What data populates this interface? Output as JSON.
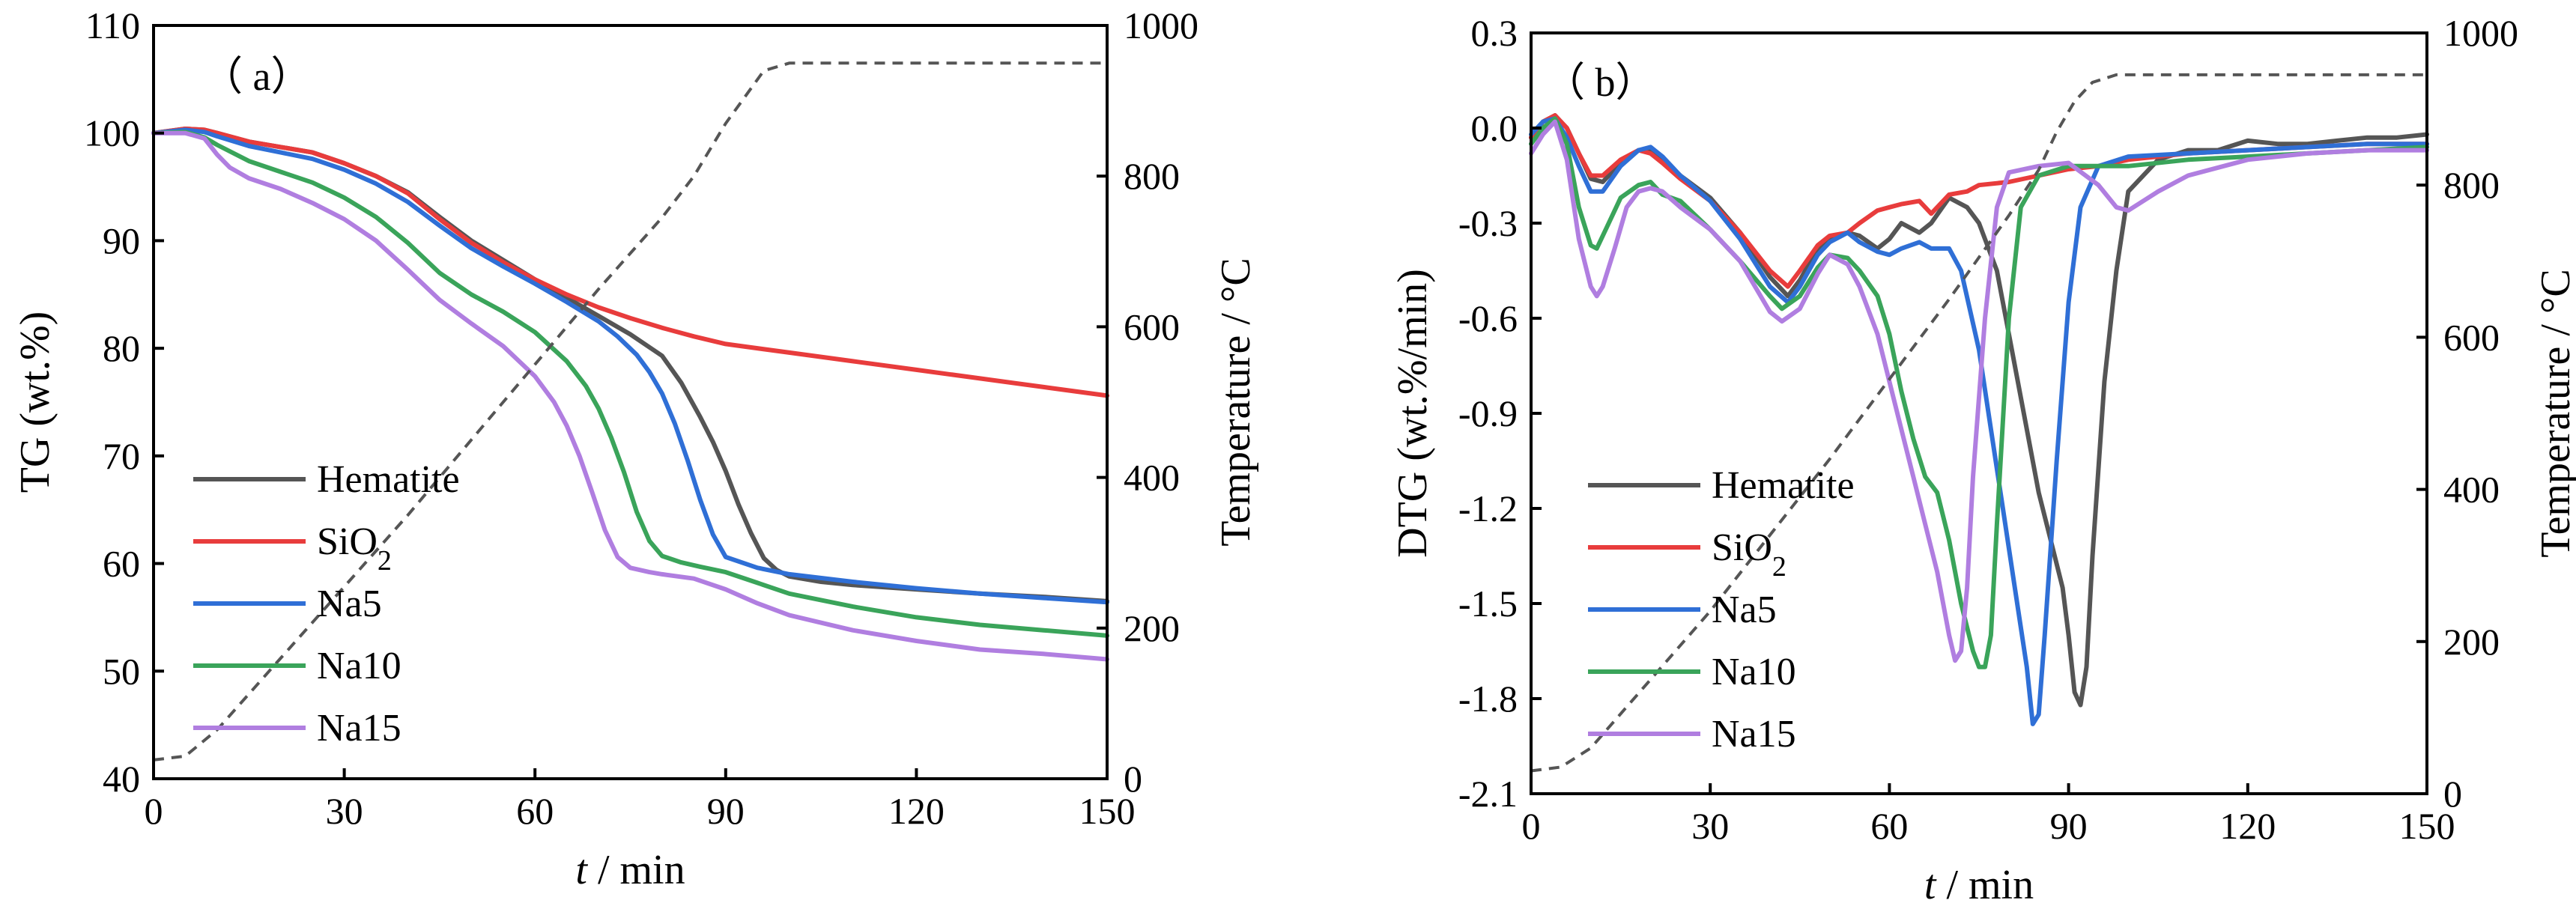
{
  "chart_data": [
    {
      "id": "a",
      "type": "line",
      "panel_label": "（ a）",
      "xlabel": {
        "var": "t",
        "unit": " / min"
      },
      "ylabel": "TG (wt.%)",
      "y2label": "Temperature / °C",
      "xlim": [
        0,
        150
      ],
      "ylim": [
        40,
        110
      ],
      "y2lim": [
        0,
        1000
      ],
      "xticks": [
        0,
        30,
        60,
        90,
        120,
        150
      ],
      "yticks": [
        40,
        50,
        60,
        70,
        80,
        90,
        100,
        110
      ],
      "y2ticks": [
        0,
        200,
        400,
        600,
        800,
        1000
      ],
      "grid": false,
      "legend_position": "bottom-left",
      "temperature_curve": {
        "name": "Temperature",
        "style": "dashed",
        "color": "#555555",
        "x": [
          0,
          5,
          10,
          20,
          30,
          40,
          50,
          60,
          70,
          80,
          85,
          90,
          93,
          96,
          100,
          110,
          150
        ],
        "y": [
          25,
          30,
          65,
          160,
          255,
          350,
          450,
          550,
          650,
          745,
          800,
          870,
          905,
          940,
          950,
          950,
          950
        ]
      },
      "series": [
        {
          "name": "Hematite",
          "sub": "",
          "color": "#555555",
          "x": [
            0,
            5,
            8,
            10,
            15,
            20,
            25,
            30,
            35,
            40,
            45,
            50,
            55,
            60,
            65,
            70,
            75,
            80,
            83,
            86,
            88,
            90,
            92,
            94,
            96,
            98,
            100,
            105,
            110,
            120,
            130,
            140,
            150
          ],
          "y": [
            100,
            100.4,
            100.3,
            100,
            99.2,
            98.7,
            98.2,
            97.2,
            96,
            94.5,
            92.2,
            90,
            88.2,
            86.4,
            84.7,
            83,
            81.3,
            79.3,
            76.8,
            73.6,
            71.3,
            68.6,
            65.5,
            62.8,
            60.5,
            59.4,
            58.8,
            58.3,
            58,
            57.6,
            57.2,
            56.9,
            56.5
          ]
        },
        {
          "name": "SiO",
          "sub": "2",
          "color": "#e83c3c",
          "x": [
            0,
            5,
            8,
            10,
            15,
            20,
            25,
            30,
            35,
            40,
            45,
            50,
            55,
            60,
            65,
            70,
            75,
            80,
            85,
            90,
            100,
            110,
            120,
            130,
            140,
            150
          ],
          "y": [
            100,
            100.4,
            100.3,
            100,
            99.2,
            98.7,
            98.2,
            97.2,
            96,
            94.4,
            92,
            89.8,
            88,
            86.4,
            85,
            83.8,
            82.8,
            81.9,
            81.1,
            80.4,
            79.6,
            78.8,
            78,
            77.2,
            76.4,
            75.6
          ]
        },
        {
          "name": "Na5",
          "sub": "",
          "color": "#2f6fd6",
          "x": [
            0,
            5,
            8,
            10,
            15,
            20,
            25,
            30,
            35,
            40,
            45,
            50,
            55,
            60,
            65,
            70,
            73,
            76,
            78,
            80,
            82,
            84,
            86,
            88,
            90,
            95,
            100,
            110,
            120,
            130,
            140,
            150
          ],
          "y": [
            100,
            100.3,
            100.1,
            99.7,
            98.8,
            98.2,
            97.6,
            96.6,
            95.3,
            93.6,
            91.4,
            89.3,
            87.6,
            86,
            84.3,
            82.5,
            81.1,
            79.4,
            77.8,
            75.8,
            73,
            69.6,
            65.9,
            62.7,
            60.6,
            59.6,
            59,
            58.3,
            57.7,
            57.2,
            56.8,
            56.4
          ]
        },
        {
          "name": "Na10",
          "sub": "",
          "color": "#3aa45a",
          "x": [
            0,
            5,
            8,
            10,
            15,
            20,
            25,
            30,
            35,
            40,
            45,
            50,
            55,
            60,
            65,
            68,
            70,
            72,
            74,
            76,
            78,
            80,
            83,
            86,
            90,
            95,
            100,
            110,
            120,
            130,
            140,
            150
          ],
          "y": [
            100,
            100.1,
            99.6,
            98.9,
            97.4,
            96.4,
            95.4,
            94,
            92.2,
            89.8,
            87,
            85,
            83.4,
            81.5,
            78.8,
            76.5,
            74.4,
            71.7,
            68.5,
            64.8,
            62.1,
            60.7,
            60.1,
            59.7,
            59.2,
            58.2,
            57.2,
            56,
            55,
            54.3,
            53.8,
            53.3
          ]
        },
        {
          "name": "Na15",
          "sub": "",
          "color": "#b07ee0",
          "x": [
            0,
            5,
            8,
            10,
            12,
            15,
            20,
            25,
            30,
            35,
            40,
            45,
            50,
            55,
            60,
            63,
            65,
            67,
            69,
            71,
            73,
            75,
            78,
            80,
            85,
            90,
            95,
            100,
            110,
            120,
            130,
            140,
            150
          ],
          "y": [
            100,
            100,
            99.5,
            98,
            96.8,
            95.8,
            94.8,
            93.5,
            92,
            90,
            87.3,
            84.5,
            82.3,
            80.2,
            77.4,
            75,
            72.8,
            70,
            66.6,
            63.1,
            60.6,
            59.6,
            59.2,
            59,
            58.6,
            57.6,
            56.3,
            55.2,
            53.8,
            52.8,
            52,
            51.6,
            51.1
          ]
        }
      ]
    },
    {
      "id": "b",
      "type": "line",
      "panel_label": "（ b）",
      "xlabel": {
        "var": "t",
        "unit": " / min"
      },
      "ylabel": "DTG  (wt.%/min)",
      "y2label": "Temperature / °C",
      "xlim": [
        0,
        150
      ],
      "ylim": [
        -2.1,
        0.3
      ],
      "y2lim": [
        0,
        1000
      ],
      "xticks": [
        0,
        30,
        60,
        90,
        120,
        150
      ],
      "yticks": [
        "-2.1",
        "-1.8",
        "-1.5",
        "-1.2",
        "-0.9",
        "-0.6",
        "-0.3",
        "0.0",
        "0.3"
      ],
      "y2ticks": [
        0,
        200,
        400,
        600,
        800,
        1000
      ],
      "grid": false,
      "legend_position": "bottom-left",
      "temperature_curve": {
        "name": "Temperature",
        "style": "dashed",
        "color": "#555555",
        "x": [
          0,
          5,
          10,
          20,
          30,
          40,
          50,
          60,
          70,
          80,
          85,
          88,
          91,
          94,
          98,
          105,
          150
        ],
        "y": [
          30,
          35,
          60,
          150,
          240,
          340,
          440,
          545,
          650,
          760,
          820,
          870,
          910,
          935,
          945,
          945,
          945
        ]
      },
      "series": [
        {
          "name": "Hematite",
          "sub": "",
          "color": "#555555",
          "x": [
            0,
            2,
            4,
            6,
            8,
            10,
            12,
            15,
            18,
            20,
            22,
            25,
            30,
            35,
            40,
            43,
            45,
            48,
            50,
            53,
            55,
            58,
            60,
            62,
            65,
            67,
            70,
            73,
            75,
            78,
            80,
            83,
            85,
            87,
            89,
            90,
            91,
            92,
            93,
            94,
            96,
            98,
            100,
            105,
            110,
            115,
            120,
            125,
            130,
            135,
            140,
            145,
            150
          ],
          "y": [
            -0.03,
            0.02,
            0.04,
            0,
            -0.08,
            -0.16,
            -0.17,
            -0.11,
            -0.07,
            -0.07,
            -0.1,
            -0.15,
            -0.22,
            -0.33,
            -0.47,
            -0.53,
            -0.48,
            -0.38,
            -0.35,
            -0.33,
            -0.34,
            -0.38,
            -0.35,
            -0.3,
            -0.33,
            -0.3,
            -0.22,
            -0.25,
            -0.3,
            -0.45,
            -0.65,
            -0.95,
            -1.15,
            -1.3,
            -1.45,
            -1.6,
            -1.78,
            -1.82,
            -1.7,
            -1.35,
            -0.8,
            -0.45,
            -0.2,
            -0.1,
            -0.07,
            -0.07,
            -0.04,
            -0.05,
            -0.05,
            -0.04,
            -0.03,
            -0.03,
            -0.02
          ]
        },
        {
          "name": "SiO",
          "sub": "2",
          "color": "#e83c3c",
          "x": [
            0,
            2,
            4,
            6,
            8,
            10,
            12,
            15,
            18,
            20,
            22,
            25,
            30,
            35,
            40,
            43,
            45,
            48,
            50,
            53,
            55,
            58,
            60,
            62,
            65,
            67,
            70,
            73,
            75,
            80,
            85,
            90,
            95,
            100,
            110,
            120,
            130,
            140,
            150
          ],
          "y": [
            -0.03,
            0.02,
            0.04,
            0,
            -0.08,
            -0.15,
            -0.15,
            -0.1,
            -0.07,
            -0.08,
            -0.11,
            -0.16,
            -0.23,
            -0.33,
            -0.45,
            -0.5,
            -0.45,
            -0.37,
            -0.34,
            -0.33,
            -0.3,
            -0.26,
            -0.25,
            -0.24,
            -0.23,
            -0.27,
            -0.21,
            -0.2,
            -0.18,
            -0.17,
            -0.15,
            -0.13,
            -0.12,
            -0.1,
            -0.08,
            -0.07,
            -0.06,
            -0.05,
            -0.05
          ]
        },
        {
          "name": "Na5",
          "sub": "",
          "color": "#2f6fd6",
          "x": [
            0,
            2,
            4,
            6,
            8,
            10,
            12,
            15,
            18,
            20,
            22,
            25,
            30,
            35,
            40,
            43,
            45,
            48,
            50,
            53,
            55,
            58,
            60,
            62,
            65,
            67,
            70,
            72,
            75,
            77,
            79,
            81,
            83,
            84,
            85,
            86,
            88,
            90,
            92,
            95,
            100,
            110,
            120,
            130,
            140,
            150
          ],
          "y": [
            -0.02,
            0.02,
            0.03,
            -0.03,
            -0.12,
            -0.2,
            -0.2,
            -0.12,
            -0.07,
            -0.06,
            -0.09,
            -0.15,
            -0.23,
            -0.35,
            -0.5,
            -0.55,
            -0.5,
            -0.4,
            -0.36,
            -0.33,
            -0.36,
            -0.39,
            -0.4,
            -0.38,
            -0.36,
            -0.38,
            -0.38,
            -0.45,
            -0.7,
            -0.95,
            -1.2,
            -1.45,
            -1.7,
            -1.88,
            -1.85,
            -1.6,
            -1.05,
            -0.55,
            -0.25,
            -0.12,
            -0.09,
            -0.08,
            -0.07,
            -0.06,
            -0.05,
            -0.05
          ]
        },
        {
          "name": "Na10",
          "sub": "",
          "color": "#3aa45a",
          "x": [
            0,
            2,
            4,
            6,
            8,
            10,
            11,
            13,
            15,
            18,
            20,
            22,
            25,
            30,
            35,
            40,
            42,
            45,
            48,
            50,
            53,
            55,
            58,
            60,
            62,
            64,
            66,
            68,
            70,
            72,
            74,
            75,
            76,
            77,
            78,
            80,
            82,
            85,
            90,
            95,
            100,
            110,
            120,
            130,
            140,
            150
          ],
          "y": [
            -0.05,
            0,
            0.03,
            -0.05,
            -0.25,
            -0.37,
            -0.38,
            -0.3,
            -0.22,
            -0.18,
            -0.17,
            -0.21,
            -0.23,
            -0.32,
            -0.42,
            -0.53,
            -0.57,
            -0.53,
            -0.44,
            -0.4,
            -0.41,
            -0.45,
            -0.53,
            -0.65,
            -0.83,
            -0.98,
            -1.1,
            -1.15,
            -1.3,
            -1.5,
            -1.65,
            -1.7,
            -1.7,
            -1.6,
            -1.25,
            -0.6,
            -0.25,
            -0.15,
            -0.12,
            -0.12,
            -0.12,
            -0.1,
            -0.09,
            -0.08,
            -0.07,
            -0.06
          ]
        },
        {
          "name": "Na15",
          "sub": "",
          "color": "#b07ee0",
          "x": [
            0,
            2,
            4,
            6,
            8,
            10,
            11,
            12,
            14,
            16,
            18,
            20,
            22,
            25,
            30,
            35,
            40,
            42,
            45,
            48,
            50,
            53,
            55,
            58,
            60,
            62,
            64,
            66,
            68,
            70,
            71,
            72,
            73,
            74,
            76,
            78,
            80,
            85,
            90,
            95,
            98,
            100,
            105,
            110,
            120,
            130,
            140,
            150
          ],
          "y": [
            -0.08,
            -0.02,
            0.02,
            -0.1,
            -0.35,
            -0.5,
            -0.53,
            -0.5,
            -0.38,
            -0.25,
            -0.2,
            -0.19,
            -0.2,
            -0.25,
            -0.32,
            -0.42,
            -0.58,
            -0.61,
            -0.57,
            -0.46,
            -0.4,
            -0.43,
            -0.5,
            -0.65,
            -0.8,
            -0.95,
            -1.1,
            -1.25,
            -1.4,
            -1.6,
            -1.68,
            -1.65,
            -1.45,
            -1.1,
            -0.6,
            -0.25,
            -0.14,
            -0.12,
            -0.11,
            -0.18,
            -0.25,
            -0.26,
            -0.2,
            -0.15,
            -0.1,
            -0.08,
            -0.07,
            -0.07
          ]
        }
      ]
    }
  ]
}
